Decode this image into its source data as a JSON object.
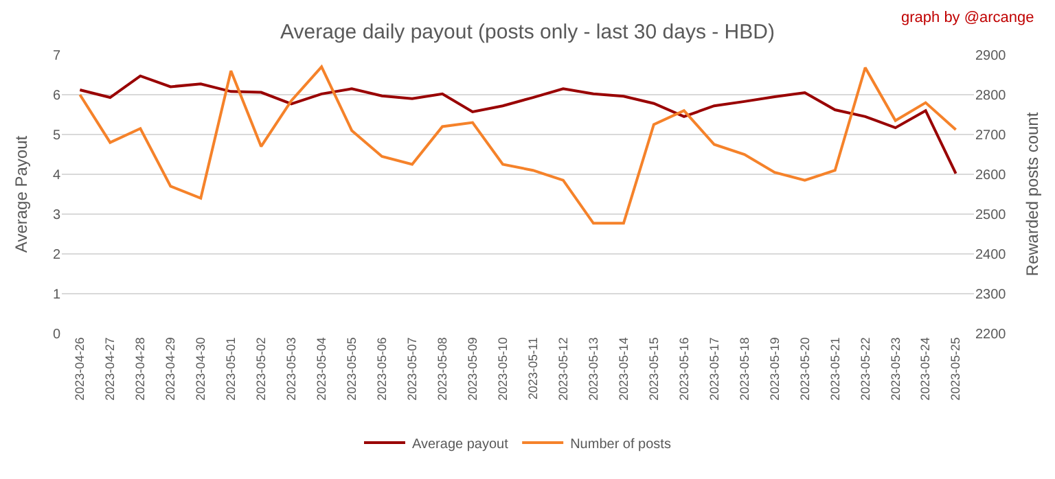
{
  "chart_data": {
    "type": "line",
    "title": "Average daily payout (posts only - last 30 days - HBD)",
    "ylabel": "Average Payout",
    "y2label": "Rewarded posts count",
    "annotations": [
      "graph by @arcange"
    ],
    "categories": [
      "2023-04-26",
      "2023-04-27",
      "2023-04-28",
      "2023-04-29",
      "2023-04-30",
      "2023-05-01",
      "2023-05-02",
      "2023-05-03",
      "2023-05-04",
      "2023-05-05",
      "2023-05-06",
      "2023-05-07",
      "2023-05-08",
      "2023-05-09",
      "2023-05-10",
      "2023-05-11",
      "2023-05-12",
      "2023-05-13",
      "2023-05-14",
      "2023-05-15",
      "2023-05-16",
      "2023-05-17",
      "2023-05-18",
      "2023-05-19",
      "2023-05-20",
      "2023-05-21",
      "2023-05-22",
      "2023-05-23",
      "2023-05-24",
      "2023-05-25"
    ],
    "series": [
      {
        "name": "Average payout",
        "color": "#990000",
        "values": [
          6.12,
          5.93,
          6.47,
          6.2,
          6.27,
          6.08,
          6.06,
          5.77,
          6.02,
          6.15,
          5.97,
          5.9,
          6.02,
          5.57,
          5.72,
          5.93,
          6.15,
          6.02,
          5.96,
          5.78,
          5.45,
          5.72,
          5.83,
          5.95,
          6.05,
          5.62,
          5.45,
          5.17,
          5.6,
          4.02
        ]
      },
      {
        "name": "Number of posts",
        "color": "#f5822a",
        "axis": "y2",
        "values": [
          2800,
          2680,
          2715,
          2570,
          2540,
          2860,
          2670,
          2785,
          2870,
          2710,
          2645,
          2625,
          2720,
          2730,
          2625,
          2610,
          2585,
          2477,
          2477,
          2725,
          2760,
          2675,
          2650,
          2605,
          2585,
          2610,
          2868,
          2735,
          2780,
          2712
        ]
      }
    ],
    "ylim": [
      0,
      7
    ],
    "yticks": [
      0,
      1,
      2,
      3,
      4,
      5,
      6,
      7
    ],
    "y2lim": [
      2200,
      2900
    ],
    "y2ticks": [
      2200,
      2300,
      2400,
      2500,
      2600,
      2700,
      2800,
      2900
    ],
    "grid": "y",
    "legend": "bottom",
    "marker": "none",
    "line_style": "solid"
  }
}
